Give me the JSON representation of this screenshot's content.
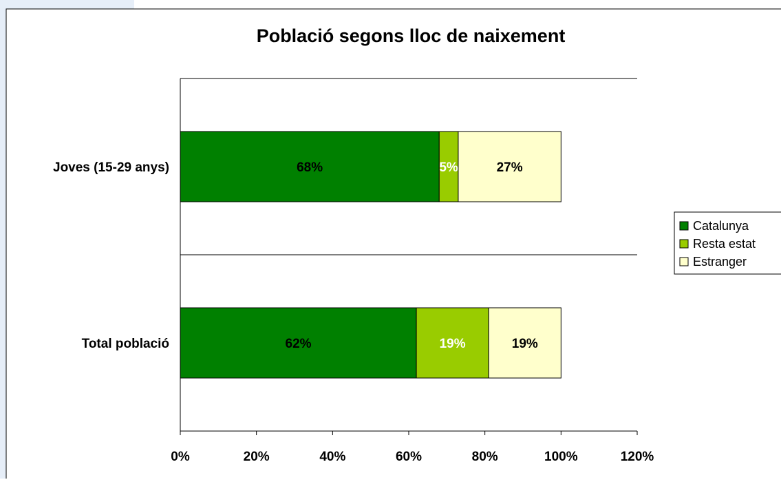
{
  "chart_data": {
    "type": "stacked_barh",
    "title": "Població segons lloc de naixement",
    "categories": [
      "Joves (15-29 anys)",
      "Total població"
    ],
    "series": [
      {
        "name": "Catalunya",
        "color": "#008000",
        "values": [
          68,
          62
        ],
        "value_labels": [
          "68%",
          "62%"
        ]
      },
      {
        "name": "Resta estat",
        "color": "#99cc00",
        "values": [
          5,
          19
        ],
        "value_labels": [
          "5%",
          "19%"
        ]
      },
      {
        "name": "Estranger",
        "color": "#ffffcc",
        "values": [
          27,
          19
        ],
        "value_labels": [
          "27%",
          "19%"
        ]
      }
    ],
    "xlim": [
      0,
      120
    ],
    "xticks": [
      {
        "value": 0,
        "label": "0%"
      },
      {
        "value": 20,
        "label": "20%"
      },
      {
        "value": 40,
        "label": "40%"
      },
      {
        "value": 60,
        "label": "60%"
      },
      {
        "value": 80,
        "label": "80%"
      },
      {
        "value": 100,
        "label": "100%"
      },
      {
        "value": 120,
        "label": "120%"
      }
    ],
    "grid": true,
    "legend": "right"
  }
}
